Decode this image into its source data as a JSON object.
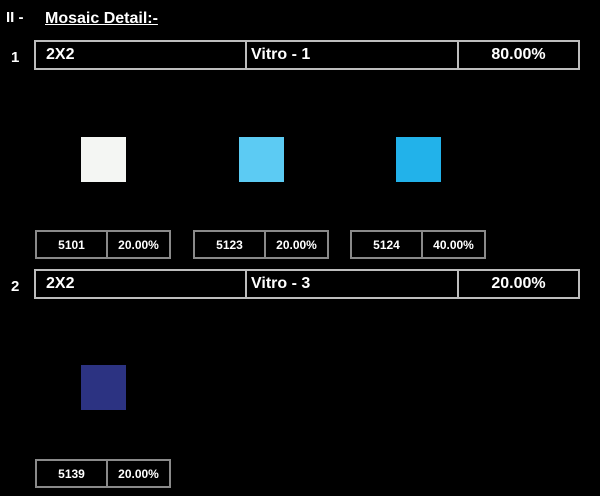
{
  "section": {
    "number": "II -",
    "title": "Mosaic Detail:-"
  },
  "rows": [
    {
      "index": "1",
      "size": "2X2",
      "name": "Vitro - 1",
      "percent": "80.00%",
      "tiles": [
        {
          "code": "5101",
          "percent": "20.00%",
          "color": "#f4f6f3"
        },
        {
          "code": "5123",
          "percent": "20.00%",
          "color": "#5ccbf3"
        },
        {
          "code": "5124",
          "percent": "40.00%",
          "color": "#22b2ea"
        }
      ]
    },
    {
      "index": "2",
      "size": "2X2",
      "name": "Vitro - 3",
      "percent": "20.00%",
      "tiles": [
        {
          "code": "5139",
          "percent": "20.00%",
          "color": "#2c3382"
        }
      ]
    }
  ]
}
